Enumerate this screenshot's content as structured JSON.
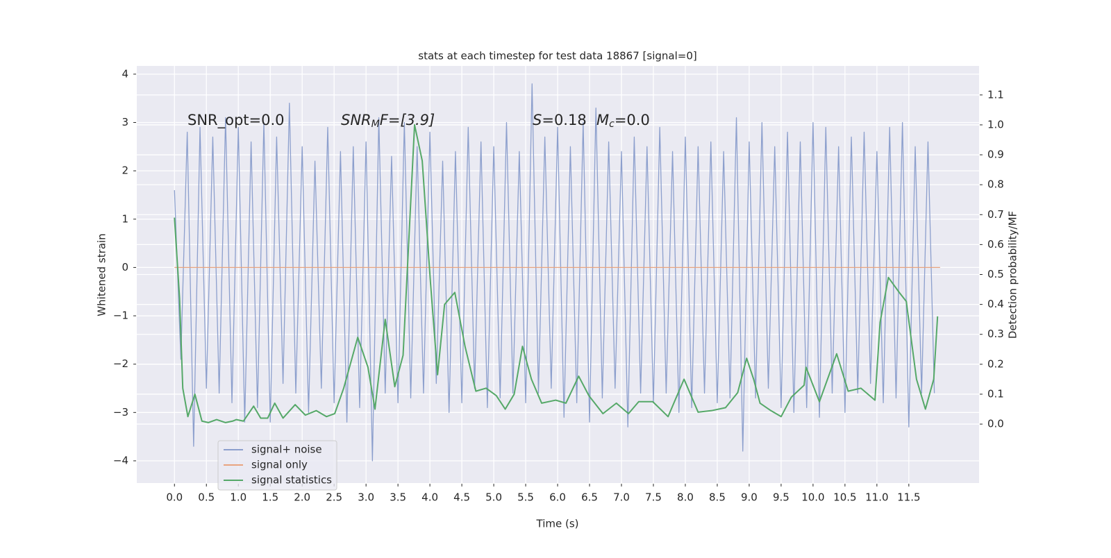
{
  "chart_data": {
    "type": "line",
    "title": "stats at each timestep for test data 18867 [signal=0]",
    "xlabel": "Time (s)",
    "ylabel": "Whitened strain",
    "y2label": "Detection probability/MF",
    "annotations": [
      [
        "SNR_opt=0.0"
      ],
      [
        "SNR",
        "M",
        "F=[3.9]"
      ],
      [
        "S",
        "=0.18"
      ],
      [
        "M",
        "c",
        "=0.0"
      ]
    ],
    "xlim": [
      -0.59,
      12.6
    ],
    "ylim": [
      -4.46,
      4.17
    ],
    "y2lim": [
      -0.197,
      1.197
    ],
    "xticks": [
      {
        "value": 0,
        "label": "0.0"
      },
      0.5,
      {
        "value": 1,
        "label": "1.0"
      },
      1.5,
      {
        "value": 2,
        "label": "2.0"
      },
      2.5,
      {
        "value": 3,
        "label": "3.0"
      },
      3.5,
      {
        "value": 4,
        "label": "4.0"
      },
      4.5,
      {
        "value": 5,
        "label": "5.0"
      },
      5.5,
      {
        "value": 6,
        "label": "6.0"
      },
      6.5,
      {
        "value": 7,
        "label": "7.0"
      },
      7.5,
      {
        "value": 8,
        "label": "8.0"
      },
      8.5,
      {
        "value": 9,
        "label": "9.0"
      },
      9.5,
      {
        "value": 10,
        "label": "10.0"
      },
      10.5,
      {
        "value": 11,
        "label": "11.0"
      },
      11.5
    ],
    "yticks": [
      {
        "value": -4,
        "label": "−4"
      },
      {
        "value": -3,
        "label": "−3"
      },
      {
        "value": -2,
        "label": "−2"
      },
      {
        "value": -1,
        "label": "−1"
      },
      0,
      1,
      2,
      3,
      4
    ],
    "y2ticks": [
      {
        "value": 0,
        "label": "0.0"
      },
      0.1,
      0.2,
      0.3,
      0.4,
      0.5,
      0.6,
      0.7,
      0.8,
      0.9,
      {
        "value": 1,
        "label": "1.0"
      },
      1.1
    ],
    "grid": true,
    "legend": "lower left",
    "series": [
      {
        "name": "signal+ noise",
        "color": "#8c9fcd",
        "x": [
          0,
          0.1,
          0.2,
          0.3,
          0.4,
          0.5,
          0.6,
          0.7,
          0.8,
          0.9,
          1,
          1.1,
          1.2,
          1.3,
          1.4,
          1.5,
          1.6,
          1.7,
          1.8,
          1.9,
          2,
          2.1,
          2.2,
          2.3,
          2.4,
          2.5,
          2.6,
          2.7,
          2.8,
          2.9,
          3,
          3.1,
          3.2,
          3.3,
          3.4,
          3.5,
          3.6,
          3.7,
          3.8,
          3.9,
          4,
          4.1,
          4.2,
          4.3,
          4.4,
          4.5,
          4.6,
          4.7,
          4.8,
          4.9,
          5,
          5.1,
          5.2,
          5.3,
          5.4,
          5.5,
          5.6,
          5.7,
          5.8,
          5.9,
          6,
          6.1,
          6.2,
          6.3,
          6.4,
          6.5,
          6.6,
          6.7,
          6.8,
          6.9,
          7,
          7.1,
          7.2,
          7.3,
          7.4,
          7.5,
          7.6,
          7.7,
          7.8,
          7.9,
          8,
          8.1,
          8.2,
          8.3,
          8.4,
          8.5,
          8.6,
          8.7,
          8.8,
          8.9,
          9,
          9.1,
          9.2,
          9.3,
          9.4,
          9.5,
          9.6,
          9.7,
          9.8,
          9.9,
          10,
          10.1,
          10.2,
          10.3,
          10.4,
          10.5,
          10.6,
          10.7,
          10.8,
          10.9,
          11,
          11.1,
          11.2,
          11.3,
          11.4,
          11.5,
          11.6,
          11.7,
          11.8,
          11.9
        ],
        "values": [
          1.6,
          -1.9,
          2.8,
          -3.7,
          2.9,
          -2.5,
          2.7,
          -2.6,
          3.1,
          -2.8,
          2.9,
          -3.2,
          2.6,
          -2.9,
          3.0,
          -3.2,
          2.7,
          -2.4,
          3.4,
          -2.6,
          2.5,
          -3.0,
          2.2,
          -2.5,
          2.9,
          -2.8,
          2.4,
          -3.2,
          2.5,
          -2.9,
          2.6,
          -4.0,
          3.1,
          -2.6,
          2.3,
          -2.8,
          3.0,
          -2.7,
          2.5,
          -2.6,
          2.8,
          -2.4,
          2.2,
          -3.0,
          2.4,
          -2.8,
          2.9,
          -2.5,
          2.6,
          -2.9,
          2.5,
          -2.7,
          3.0,
          -2.6,
          2.4,
          -2.8,
          3.8,
          -2.6,
          2.7,
          -2.5,
          2.9,
          -3.1,
          2.5,
          -2.8,
          3.0,
          -3.2,
          3.3,
          -2.7,
          2.6,
          -2.5,
          2.4,
          -3.3,
          2.7,
          -2.6,
          2.5,
          -2.8,
          2.9,
          -2.6,
          2.4,
          -3.0,
          2.7,
          -2.9,
          2.5,
          -2.6,
          2.6,
          -2.8,
          2.4,
          -2.7,
          3.1,
          -3.8,
          2.6,
          -2.7,
          3.0,
          -2.5,
          2.5,
          -2.9,
          2.8,
          -3.0,
          2.6,
          -2.9,
          3.0,
          -3.1,
          2.9,
          -2.6,
          2.5,
          -3.0,
          2.7,
          -2.6,
          2.8,
          -2.4,
          2.4,
          -2.8,
          2.9,
          -2.7,
          3.0,
          -3.3,
          2.5,
          -2.6,
          2.6,
          -2.6
        ]
      },
      {
        "name": "signal only",
        "color": "#e8a47f",
        "x": [
          0,
          11.99
        ],
        "values": [
          0,
          0
        ]
      },
      {
        "name": "signal statistics",
        "color": "#55a868",
        "axis": "y2",
        "x": [
          0,
          0.08,
          0.13,
          0.21,
          0.32,
          0.43,
          0.53,
          0.66,
          0.8,
          0.91,
          0.97,
          1.08,
          1.24,
          1.35,
          1.46,
          1.57,
          1.7,
          1.89,
          2.05,
          2.22,
          2.38,
          2.51,
          2.65,
          2.87,
          3.03,
          3.14,
          3.3,
          3.45,
          3.58,
          3.76,
          3.88,
          4.01,
          4.12,
          4.23,
          4.39,
          4.55,
          4.72,
          4.88,
          5.04,
          5.18,
          5.32,
          5.45,
          5.59,
          5.75,
          5.97,
          6.13,
          6.33,
          6.49,
          6.71,
          6.92,
          7.11,
          7.27,
          7.49,
          7.73,
          7.98,
          8.2,
          8.41,
          8.63,
          8.82,
          8.96,
          9.07,
          9.17,
          9.34,
          9.5,
          9.66,
          9.86,
          9.89,
          10.1,
          10.37,
          10.55,
          10.75,
          10.97,
          11.05,
          11.18,
          11.35,
          11.46,
          11.62,
          11.76,
          11.89,
          11.95
        ],
        "values": [
          0.69,
          0.42,
          0.12,
          0.025,
          0.1,
          0.01,
          0.005,
          0.015,
          0.005,
          0.01,
          0.015,
          0.01,
          0.06,
          0.02,
          0.02,
          0.07,
          0.02,
          0.065,
          0.03,
          0.045,
          0.025,
          0.035,
          0.12,
          0.29,
          0.19,
          0.05,
          0.35,
          0.125,
          0.23,
          1.0,
          0.88,
          0.47,
          0.165,
          0.4,
          0.44,
          0.26,
          0.11,
          0.12,
          0.095,
          0.05,
          0.1,
          0.26,
          0.15,
          0.07,
          0.08,
          0.07,
          0.16,
          0.095,
          0.035,
          0.07,
          0.035,
          0.075,
          0.075,
          0.025,
          0.15,
          0.04,
          0.045,
          0.055,
          0.105,
          0.22,
          0.15,
          0.07,
          0.045,
          0.025,
          0.09,
          0.13,
          0.19,
          0.075,
          0.235,
          0.11,
          0.12,
          0.08,
          0.34,
          0.49,
          0.44,
          0.41,
          0.15,
          0.05,
          0.15,
          0.36
        ]
      }
    ]
  }
}
